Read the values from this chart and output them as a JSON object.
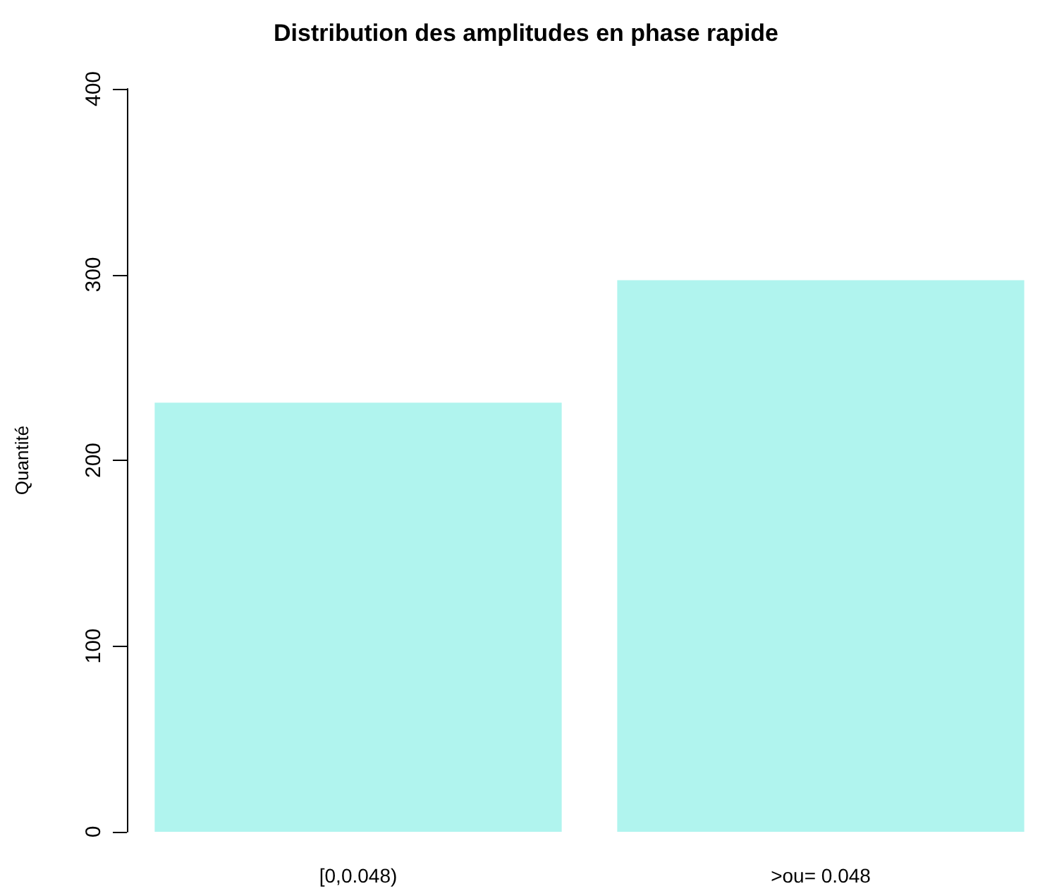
{
  "chart_data": {
    "type": "bar",
    "title": "Distribution des amplitudes en phase rapide",
    "ylabel": "Quantité",
    "categories": [
      "[0,0.048)",
      ">ou= 0.048"
    ],
    "values": [
      231,
      297
    ],
    "color": "#b0f4ee",
    "ylim": [
      0,
      400
    ],
    "yticks": [
      0,
      100,
      200,
      300,
      400
    ],
    "grid": false
  }
}
